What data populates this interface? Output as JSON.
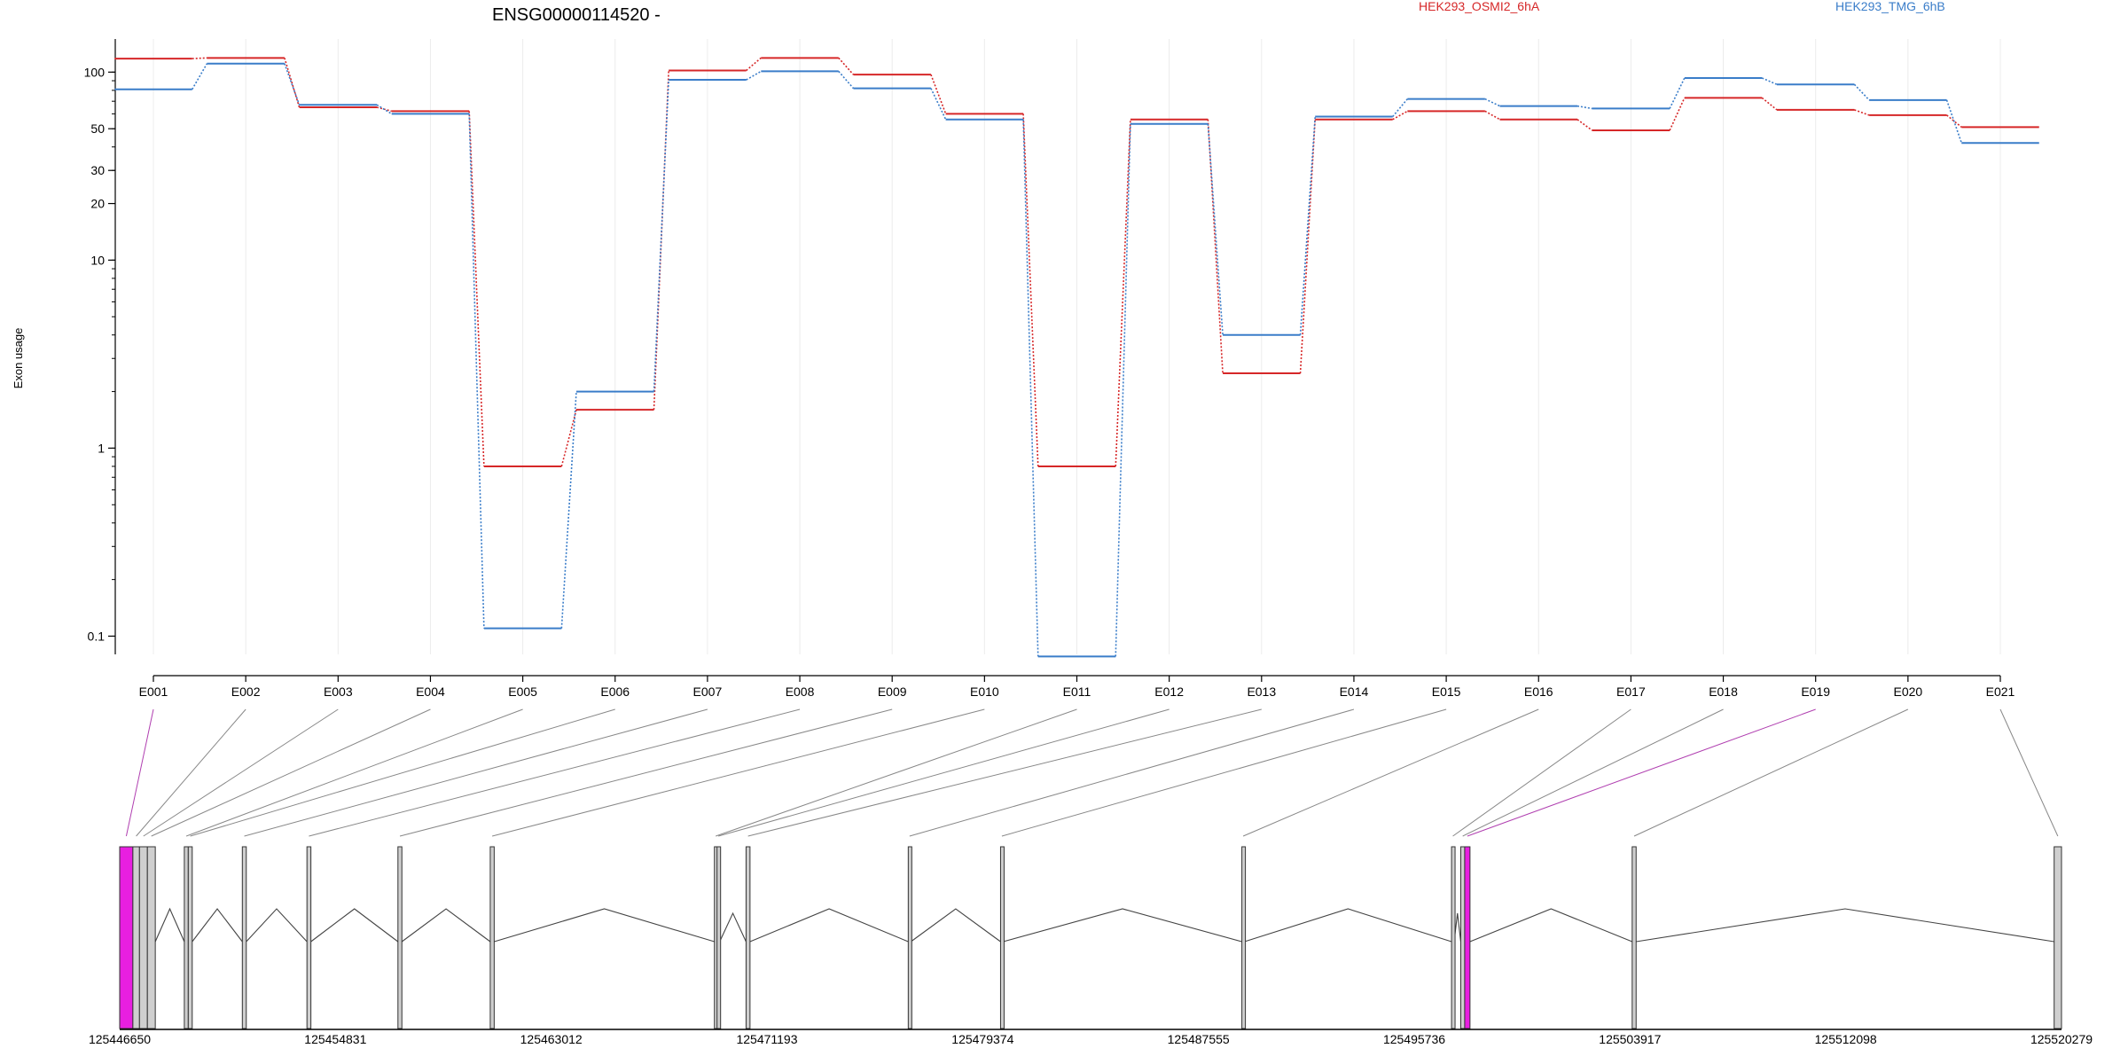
{
  "title": "ENSG00000114520 -",
  "ylabel": "Exon usage",
  "legend": [
    {
      "name": "HEK293_OSMI2_6hA",
      "color": "#d62728"
    },
    {
      "name": "HEK293_TMG_6hB",
      "color": "#3a7dc9"
    }
  ],
  "chart_data": {
    "type": "line",
    "title": "ENSG00000114520 -",
    "ylabel": "Exon usage",
    "xlabel": "",
    "yscale": "log",
    "ylim": [
      0.08,
      150
    ],
    "yticks": [
      "0.1",
      "1",
      "10",
      "20",
      "30",
      "50",
      "100"
    ],
    "grid": true,
    "legend_position": "top-right",
    "categories": [
      "E001",
      "E002",
      "E003",
      "E004",
      "E005",
      "E006",
      "E007",
      "E008",
      "E009",
      "E010",
      "E011",
      "E012",
      "E013",
      "E014",
      "E015",
      "E016",
      "E017",
      "E018",
      "E019",
      "E020",
      "E021"
    ],
    "series": [
      {
        "name": "HEK293_OSMI2_6hA",
        "color": "#d62728",
        "values": [
          118,
          119,
          65,
          62,
          0.8,
          1.6,
          102,
          119,
          97,
          60,
          0.8,
          56,
          2.5,
          56,
          62,
          56,
          49,
          73,
          63,
          59,
          51
        ]
      },
      {
        "name": "HEK293_TMG_6hB",
        "color": "#3a7dc9",
        "values": [
          81,
          111,
          67,
          60,
          0.11,
          2.0,
          91,
          101,
          82,
          56,
          0.078,
          53,
          4.0,
          58,
          72,
          66,
          64,
          93,
          86,
          71,
          42
        ]
      }
    ]
  },
  "gene_model": {
    "coordinate_ticks": [
      "125446650",
      "125454831",
      "125463012",
      "125471193",
      "125479374",
      "125487555",
      "125495736",
      "125503917",
      "125512098",
      "125520279"
    ],
    "exons": [
      {
        "id": "E001",
        "start": 125446650,
        "end": 125447150,
        "highlight": true
      },
      {
        "id": "E002",
        "start": 125447150,
        "end": 125447400,
        "highlight": false
      },
      {
        "id": "E003",
        "start": 125447400,
        "end": 125447700,
        "highlight": false
      },
      {
        "id": "E004",
        "start": 125447700,
        "end": 125448000,
        "highlight": false
      },
      {
        "id": "E005",
        "start": 125449100,
        "end": 125449250,
        "highlight": false
      },
      {
        "id": "E006",
        "start": 125449250,
        "end": 125449400,
        "highlight": false
      },
      {
        "id": "E007",
        "start": 125451300,
        "end": 125451450,
        "highlight": false
      },
      {
        "id": "E008",
        "start": 125453750,
        "end": 125453900,
        "highlight": false
      },
      {
        "id": "E009",
        "start": 125457200,
        "end": 125457350,
        "highlight": false
      },
      {
        "id": "E010",
        "start": 125460700,
        "end": 125460850,
        "highlight": false
      },
      {
        "id": "E011",
        "start": 125469200,
        "end": 125469300,
        "highlight": false
      },
      {
        "id": "E012",
        "start": 125469300,
        "end": 125469400,
        "highlight": false
      },
      {
        "id": "E013",
        "start": 125470400,
        "end": 125470550,
        "highlight": false
      },
      {
        "id": "E014",
        "start": 125476550,
        "end": 125476650,
        "highlight": false
      },
      {
        "id": "E015",
        "start": 125480050,
        "end": 125480150,
        "highlight": false
      },
      {
        "id": "E016",
        "start": 125489200,
        "end": 125489300,
        "highlight": false
      },
      {
        "id": "E017",
        "start": 125497150,
        "end": 125497250,
        "highlight": false
      },
      {
        "id": "E018",
        "start": 125497500,
        "end": 125497650,
        "highlight": false
      },
      {
        "id": "E019",
        "start": 125497650,
        "end": 125497850,
        "highlight": true
      },
      {
        "id": "E020",
        "start": 125504000,
        "end": 125504150,
        "highlight": false
      },
      {
        "id": "E021",
        "start": 125520000,
        "end": 125520279,
        "highlight": false
      }
    ]
  },
  "colors": {
    "osmi": "#d62728",
    "tmg": "#3a7dc9",
    "highlight_exon": "#e81fe0",
    "exon": "#cfcfcf",
    "grid": "#ececec"
  }
}
